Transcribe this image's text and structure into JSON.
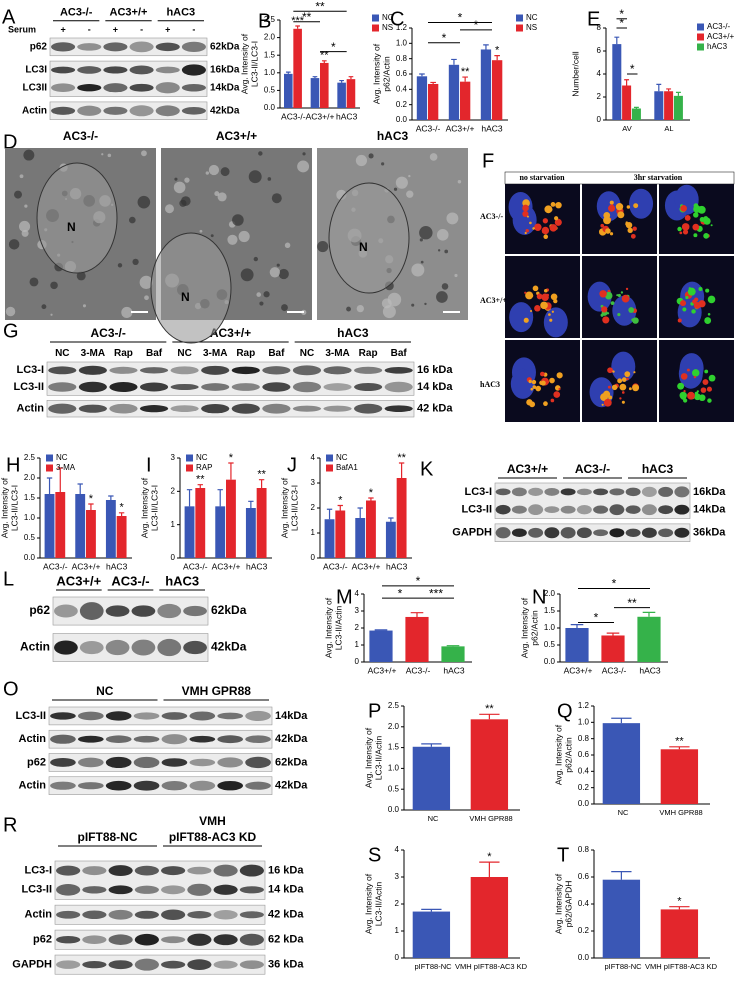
{
  "chart_data": [
    {
      "panel": "B",
      "type": "bar",
      "ylabel": [
        "Avg. Intensity of",
        "LC3-II/LC3-I"
      ],
      "categories": [
        "AC3-/-",
        "AC3+/+",
        "hAC3"
      ],
      "ylim": [
        0,
        2.5
      ],
      "yticks": [
        {
          "value": 0,
          "label": "0.0"
        },
        {
          "value": 0.5,
          "label": "0.5"
        },
        {
          "value": 1,
          "label": "1.0"
        },
        {
          "value": 1.5,
          "label": "1.5"
        },
        {
          "value": 2,
          "label": "2.0"
        },
        {
          "value": 2.5,
          "label": "2.5"
        }
      ],
      "series": [
        {
          "name": "NC",
          "color": "#3a57b5",
          "values": [
            0.97,
            0.85,
            0.72
          ],
          "errors": [
            0.05,
            0.04,
            0.06
          ],
          "annotations": [
            null,
            null,
            null
          ]
        },
        {
          "name": "NS",
          "color": "#e3262c",
          "values": [
            2.25,
            1.28,
            0.82
          ],
          "errors": [
            0.08,
            0.06,
            0.07
          ],
          "annotations": [
            "***",
            "**",
            null
          ]
        }
      ],
      "comparisons": [
        "**",
        "**",
        "*"
      ]
    },
    {
      "panel": "C",
      "type": "bar",
      "ylabel": [
        "Avg. Intensity of",
        "p62/Actin"
      ],
      "categories": [
        "AC3-/-",
        "AC3+/+",
        "hAC3"
      ],
      "ylim": [
        0,
        1.2
      ],
      "yticks": [
        {
          "value": 0,
          "label": "0.0"
        },
        {
          "value": 0.2,
          "label": "0.2"
        },
        {
          "value": 0.4,
          "label": "0.4"
        },
        {
          "value": 0.6,
          "label": "0.6"
        },
        {
          "value": 0.8,
          "label": "0.8"
        },
        {
          "value": 1,
          "label": "1.0"
        },
        {
          "value": 1.2,
          "label": "1.2"
        }
      ],
      "series": [
        {
          "name": "NC",
          "color": "#3a57b5",
          "values": [
            0.57,
            0.72,
            0.92
          ],
          "errors": [
            0.03,
            0.07,
            0.06
          ],
          "annotations": [
            null,
            null,
            null
          ]
        },
        {
          "name": "NS",
          "color": "#e3262c",
          "values": [
            0.47,
            0.5,
            0.78
          ],
          "errors": [
            0.02,
            0.06,
            0.06
          ],
          "annotations": [
            null,
            "**",
            "*"
          ]
        }
      ],
      "comparisons": [
        "*",
        "*",
        "*"
      ]
    },
    {
      "panel": "E",
      "type": "bar",
      "ylabel": [
        "Number/cell"
      ],
      "categories": [
        "AV",
        "AL"
      ],
      "ylim": [
        0,
        8
      ],
      "yticks": [
        0,
        2,
        4,
        6,
        8
      ],
      "series": [
        {
          "name": "AC3-/-",
          "color": "#3a57b5",
          "values": [
            6.6,
            2.5
          ],
          "errors": [
            0.6,
            0.6
          ],
          "annotations": [
            null,
            null
          ]
        },
        {
          "name": "AC3+/+",
          "color": "#e3262c",
          "values": [
            3,
            2.5
          ],
          "errors": [
            0.5,
            0.2
          ],
          "annotations": [
            null,
            null
          ]
        },
        {
          "name": "hAC3",
          "color": "#35b24a",
          "values": [
            1,
            2.1
          ],
          "errors": [
            0.1,
            0.3
          ],
          "annotations": [
            null,
            null
          ]
        }
      ],
      "comparisons": [
        "*",
        "*",
        "*"
      ]
    },
    {
      "panel": "H",
      "type": "bar",
      "ylabel": [
        "Avg. Intensity of",
        "LC3-II/LC3-I"
      ],
      "categories": [
        "AC3-/-",
        "AC3+/+",
        "hAC3"
      ],
      "ylim": [
        0,
        2.5
      ],
      "yticks": [
        {
          "value": 0,
          "label": "0.0"
        },
        {
          "value": 0.5,
          "label": "0.5"
        },
        {
          "value": 1,
          "label": "1.0"
        },
        {
          "value": 1.5,
          "label": "1.5"
        },
        {
          "value": 2,
          "label": "2.0"
        },
        {
          "value": 2.5,
          "label": "2.5"
        }
      ],
      "series": [
        {
          "name": "NC",
          "color": "#3a57b5",
          "values": [
            1.6,
            1.6,
            1.45
          ],
          "errors": [
            0.4,
            0.25,
            0.1
          ],
          "annotations": [
            null,
            null,
            null
          ]
        },
        {
          "name": "3-MA",
          "color": "#e3262c",
          "values": [
            1.65,
            1.2,
            1.05
          ],
          "errors": [
            0.6,
            0.15,
            0.08
          ],
          "annotations": [
            null,
            "*",
            "*"
          ]
        }
      ],
      "comparisons": []
    },
    {
      "panel": "I",
      "type": "bar",
      "ylabel": [
        "Avg. Intensity of",
        "LC3-II/LC3-I"
      ],
      "categories": [
        "AC3-/-",
        "AC3+/+",
        "hAC3"
      ],
      "ylim": [
        0,
        3
      ],
      "yticks": [
        0,
        1,
        2,
        3
      ],
      "series": [
        {
          "name": "NC",
          "color": "#3a57b5",
          "values": [
            1.55,
            1.55,
            1.5
          ],
          "errors": [
            0.5,
            0.5,
            0.2
          ],
          "annotations": [
            null,
            null,
            null
          ]
        },
        {
          "name": "RAP",
          "color": "#e3262c",
          "values": [
            2.1,
            2.35,
            2.1
          ],
          "errors": [
            0.1,
            0.5,
            0.25
          ],
          "annotations": [
            "**",
            "*",
            "**"
          ]
        }
      ],
      "comparisons": []
    },
    {
      "panel": "J",
      "type": "bar",
      "ylabel": [
        "Avg. Intensity of",
        "LC3-II/LC3-I"
      ],
      "categories": [
        "AC3-/-",
        "AC3+/+",
        "hAC3"
      ],
      "ylim": [
        0,
        4
      ],
      "yticks": [
        0,
        1,
        2,
        3,
        4
      ],
      "series": [
        {
          "name": "NC",
          "color": "#3a57b5",
          "values": [
            1.55,
            1.6,
            1.45
          ],
          "errors": [
            0.4,
            0.4,
            0.15
          ],
          "annotations": [
            null,
            null,
            null
          ]
        },
        {
          "name": "BafA1",
          "color": "#e3262c",
          "values": [
            1.9,
            2.3,
            3.2
          ],
          "errors": [
            0.2,
            0.1,
            0.6
          ],
          "annotations": [
            "*",
            "*",
            "**"
          ]
        }
      ],
      "comparisons": []
    },
    {
      "panel": "M",
      "type": "bar",
      "ylabel": [
        "Avg. Intensity of",
        "LC3-II/Actin"
      ],
      "categories": [
        "AC3+/+",
        "AC3-/-",
        "hAC3"
      ],
      "ylim": [
        0,
        4
      ],
      "yticks": [
        0,
        1,
        2,
        3,
        4
      ],
      "series": [
        {
          "colors": [
            "#3a57b5",
            "#e3262c",
            "#35b24a"
          ],
          "values": [
            1.85,
            2.65,
            0.92
          ],
          "errors": [
            0.04,
            0.25,
            0.04
          ],
          "annotations": [
            null,
            null,
            null
          ]
        }
      ],
      "comparisons": [
        "*",
        "*",
        "***"
      ]
    },
    {
      "panel": "N",
      "type": "bar",
      "ylabel": [
        "Avg. Intensity of",
        "p62/Actin"
      ],
      "categories": [
        "AC3+/+",
        "AC3-/-",
        "hAC3"
      ],
      "ylim": [
        0,
        2
      ],
      "yticks": [
        {
          "value": 0,
          "label": "0.0"
        },
        {
          "value": 0.5,
          "label": "0.5"
        },
        {
          "value": 1,
          "label": "1.0"
        },
        {
          "value": 1.5,
          "label": "1.5"
        },
        {
          "value": 2,
          "label": "2.0"
        }
      ],
      "series": [
        {
          "colors": [
            "#3a57b5",
            "#e3262c",
            "#35b24a"
          ],
          "values": [
            1,
            0.78,
            1.33
          ],
          "errors": [
            0.1,
            0.07,
            0.13
          ],
          "annotations": [
            null,
            null,
            null
          ]
        }
      ],
      "comparisons": [
        "*",
        "*",
        "**"
      ]
    },
    {
      "panel": "P",
      "type": "bar",
      "ylabel": [
        "Avg. Intensity of",
        "LC3-II/Actin"
      ],
      "categories": [
        "NC",
        "VMH GPR88"
      ],
      "ylim": [
        0,
        2.5
      ],
      "yticks": [
        {
          "value": 0,
          "label": "0.0"
        },
        {
          "value": 0.5,
          "label": "0.5"
        },
        {
          "value": 1,
          "label": "1.0"
        },
        {
          "value": 1.5,
          "label": "1.5"
        },
        {
          "value": 2,
          "label": "2.0"
        },
        {
          "value": 2.5,
          "label": "2.5"
        }
      ],
      "series": [
        {
          "colors": [
            "#3a57b5",
            "#e3262c"
          ],
          "values": [
            1.52,
            2.18
          ],
          "errors": [
            0.07,
            0.12
          ],
          "annotations": [
            null,
            "**"
          ]
        }
      ],
      "comparisons": []
    },
    {
      "panel": "Q",
      "type": "bar",
      "ylabel": [
        "Avg. Intensity of",
        "p62/Actin"
      ],
      "categories": [
        "NC",
        "VMH GPR88"
      ],
      "ylim": [
        0,
        1.2
      ],
      "yticks": [
        {
          "value": 0,
          "label": "0.0"
        },
        {
          "value": 0.2,
          "label": "0.2"
        },
        {
          "value": 0.4,
          "label": "0.4"
        },
        {
          "value": 0.6,
          "label": "0.6"
        },
        {
          "value": 0.8,
          "label": "0.8"
        },
        {
          "value": 1,
          "label": "1.0"
        },
        {
          "value": 1.2,
          "label": "1.2"
        }
      ],
      "series": [
        {
          "colors": [
            "#3a57b5",
            "#e3262c"
          ],
          "values": [
            0.99,
            0.67
          ],
          "errors": [
            0.06,
            0.03
          ],
          "annotations": [
            null,
            "**"
          ]
        }
      ],
      "comparisons": []
    },
    {
      "panel": "S",
      "type": "bar",
      "ylabel": [
        "Avg. Intensity of",
        "LC3-II/Actin"
      ],
      "categories": [
        "pIFT88-NC",
        "VMH pIFT88-AC3 KD"
      ],
      "ylim": [
        0,
        4
      ],
      "yticks": [
        0,
        1,
        2,
        3,
        4
      ],
      "series": [
        {
          "colors": [
            "#3a57b5",
            "#e3262c"
          ],
          "values": [
            1.72,
            3
          ],
          "errors": [
            0.08,
            0.55
          ],
          "annotations": [
            null,
            "*"
          ]
        }
      ],
      "comparisons": []
    },
    {
      "panel": "T",
      "type": "bar",
      "ylabel": [
        "Avg. Intensity of",
        "p62/GAPDH"
      ],
      "categories": [
        "pIFT88-NC",
        "VMH pIFT88-AC3 KD"
      ],
      "ylim": [
        0,
        0.8
      ],
      "yticks": [
        {
          "value": 0,
          "label": "0.0"
        },
        {
          "value": 0.2,
          "label": "0.2"
        },
        {
          "value": 0.4,
          "label": "0.4"
        },
        {
          "value": 0.6,
          "label": "0.6"
        },
        {
          "value": 0.8,
          "label": "0.8"
        }
      ],
      "series": [
        {
          "colors": [
            "#3a57b5",
            "#e3262c"
          ],
          "values": [
            0.58,
            0.36
          ],
          "errors": [
            0.06,
            0.02
          ],
          "annotations": [
            null,
            "*"
          ]
        }
      ],
      "comparisons": []
    }
  ],
  "blots": [
    {
      "panel": "A",
      "groups": [
        "AC3-/-",
        "AC3+/+",
        "hAC3"
      ],
      "lane_header": "Serum",
      "lane_labels": [
        "+",
        "-",
        "+",
        "-",
        "+",
        "-"
      ],
      "rows": [
        {
          "labels": [
            "p62"
          ],
          "sizes": [
            "62kDa"
          ]
        },
        {
          "labels": [
            "LC3I",
            "LC3II"
          ],
          "sizes": [
            "16kDa",
            "14kDa"
          ]
        },
        {
          "labels": [
            "Actin"
          ],
          "sizes": [
            "42kDa"
          ]
        }
      ]
    },
    {
      "panel": "G",
      "groups": [
        "AC3-/-",
        "AC3+/+",
        "hAC3"
      ],
      "lane_labels": [
        "NC",
        "3-MA",
        "Rap",
        "Baf",
        "NC",
        "3-MA",
        "Rap",
        "Baf",
        "NC",
        "3-MA",
        "Rap",
        "Baf"
      ],
      "rows": [
        {
          "labels": [
            "LC3-I",
            "LC3-II"
          ],
          "sizes": [
            "16 kDa",
            "14 kDa"
          ]
        },
        {
          "labels": [
            "Actin"
          ],
          "sizes": [
            "42 kDa"
          ]
        }
      ]
    },
    {
      "panel": "K",
      "groups": [
        "AC3+/+",
        "AC3-/-",
        "hAC3"
      ],
      "rows": [
        {
          "labels": [
            "LC3-I",
            "LC3-II"
          ],
          "sizes": [
            "16kDa",
            "14kDa"
          ]
        },
        {
          "labels": [
            "GAPDH"
          ],
          "sizes": [
            "36kDa"
          ]
        }
      ]
    },
    {
      "panel": "L",
      "groups": [
        "AC3+/+",
        "AC3-/-",
        "hAC3"
      ],
      "rows": [
        {
          "labels": [
            "p62"
          ],
          "sizes": [
            "62kDa"
          ]
        },
        {
          "labels": [
            "Actin"
          ],
          "sizes": [
            "42kDa"
          ]
        }
      ]
    },
    {
      "panel": "O",
      "groups": [
        "NC",
        "VMH GPR88"
      ],
      "rows": [
        {
          "labels": [
            "LC3-II"
          ],
          "sizes": [
            "14kDa"
          ]
        },
        {
          "labels": [
            "Actin"
          ],
          "sizes": [
            "42kDa"
          ]
        },
        {
          "labels": [
            "p62"
          ],
          "sizes": [
            "62kDa"
          ]
        },
        {
          "labels": [
            "Actin"
          ],
          "sizes": [
            "42kDa"
          ]
        }
      ]
    },
    {
      "panel": "R",
      "groups": [
        "pIFT88-NC",
        "pIFT88-AC3 KD"
      ],
      "group_note": "VMH",
      "rows": [
        {
          "labels": [
            "LC3-I",
            "LC3-II"
          ],
          "sizes": [
            "16 kDa",
            "14 kDa"
          ]
        },
        {
          "labels": [
            "Actin"
          ],
          "sizes": [
            "42 kDa"
          ]
        },
        {
          "labels": [
            "p62"
          ],
          "sizes": [
            "62 kDa"
          ]
        },
        {
          "labels": [
            "GAPDH"
          ],
          "sizes": [
            "36 kDa"
          ]
        }
      ]
    }
  ],
  "micrographs": {
    "panel": "D",
    "images": [
      {
        "title": "AC3-/-",
        "labels": [
          "N"
        ]
      },
      {
        "title": "AC3+/+",
        "labels": [
          "N"
        ]
      },
      {
        "title": "hAC3",
        "labels": [
          "N"
        ]
      }
    ]
  },
  "fluorescence": {
    "panel": "F",
    "column_headers": [
      "no starvation",
      "3hr starvation"
    ],
    "row_labels": [
      "AC3-/-",
      "AC3+/+",
      "hAC3"
    ]
  }
}
